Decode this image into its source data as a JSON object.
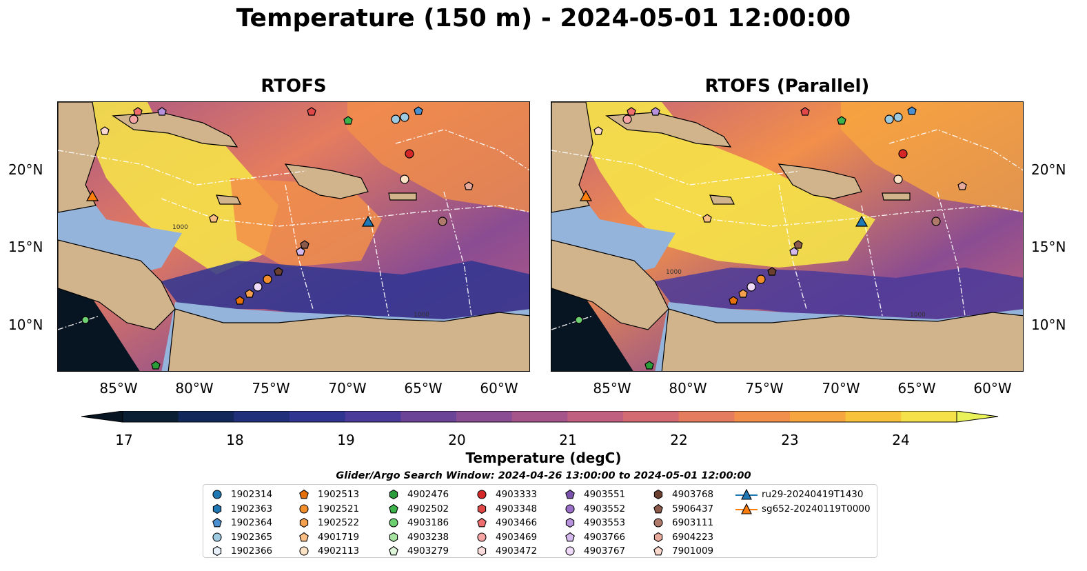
{
  "title": "Temperature (150 m) - 2024-05-01 12:00:00",
  "panels": [
    {
      "title": "RTOFS"
    },
    {
      "title": "RTOFS (Parallel)"
    }
  ],
  "lon_ticks": [
    "85°W",
    "80°W",
    "75°W",
    "70°W",
    "65°W",
    "60°W"
  ],
  "lat_ticks": [
    "20°N",
    "15°N",
    "10°N"
  ],
  "contour_labels": [
    "1000",
    "1000",
    "1000",
    "1000"
  ],
  "colorbar": {
    "label": "Temperature (degC)",
    "ticks": [
      "17",
      "18",
      "19",
      "20",
      "21",
      "22",
      "23",
      "24"
    ],
    "colors": [
      "#0a1f33",
      "#12275a",
      "#21307a",
      "#2f3590",
      "#4a3a9a",
      "#6b4498",
      "#8a4c92",
      "#a5558a",
      "#c05f80",
      "#d46b72",
      "#e57c5e",
      "#f28f4a",
      "#f7a63f",
      "#f8c23a",
      "#f5e24a"
    ],
    "extend_min_color": "#071421",
    "extend_max_color": "#eaf25a"
  },
  "search_window": "Glider/Argo Search Window: 2024-04-26 13:00:00 to 2024-05-01 12:00:00",
  "land_color": "#d2b48c",
  "shelf_color": "#94b4dc",
  "legend": [
    {
      "label": "1902314",
      "marker": "circle",
      "color": "#1f77b4"
    },
    {
      "label": "1902363",
      "marker": "hexagon",
      "color": "#1f77b4"
    },
    {
      "label": "1902364",
      "marker": "pentagon",
      "color": "#4a90d0"
    },
    {
      "label": "1902365",
      "marker": "circle",
      "color": "#9ecae1"
    },
    {
      "label": "1902366",
      "marker": "hexagon",
      "color": "#e8f1fb"
    },
    {
      "label": "1902513",
      "marker": "pentagon",
      "color": "#e6700a"
    },
    {
      "label": "1902521",
      "marker": "circle",
      "color": "#f28e2b"
    },
    {
      "label": "1902522",
      "marker": "hexagon",
      "color": "#f5a04f"
    },
    {
      "label": "4901719",
      "marker": "pentagon",
      "color": "#fbbf85"
    },
    {
      "label": "4902113",
      "marker": "circle",
      "color": "#fde3c6"
    },
    {
      "label": "4902476",
      "marker": "hexagon",
      "color": "#2a9d3a"
    },
    {
      "label": "4902502",
      "marker": "pentagon",
      "color": "#3cb44b"
    },
    {
      "label": "4903186",
      "marker": "circle",
      "color": "#6ccf70"
    },
    {
      "label": "4903238",
      "marker": "hexagon",
      "color": "#a6e3a1"
    },
    {
      "label": "4903279",
      "marker": "pentagon",
      "color": "#dff5da"
    },
    {
      "label": "4903333",
      "marker": "circle",
      "color": "#d62728"
    },
    {
      "label": "4903348",
      "marker": "hexagon",
      "color": "#e04848"
    },
    {
      "label": "4903466",
      "marker": "pentagon",
      "color": "#ee6e6e"
    },
    {
      "label": "4903469",
      "marker": "circle",
      "color": "#f5a3a3"
    },
    {
      "label": "4903472",
      "marker": "hexagon",
      "color": "#fcdcdc"
    },
    {
      "label": "4903551",
      "marker": "pentagon",
      "color": "#7b52ae"
    },
    {
      "label": "4903552",
      "marker": "circle",
      "color": "#9a6fc8"
    },
    {
      "label": "4903553",
      "marker": "hexagon",
      "color": "#b792dc"
    },
    {
      "label": "4903766",
      "marker": "pentagon",
      "color": "#d4b8ee"
    },
    {
      "label": "4903767",
      "marker": "circle",
      "color": "#efdaf9"
    },
    {
      "label": "4903768",
      "marker": "hexagon",
      "color": "#6b4030"
    },
    {
      "label": "5906437",
      "marker": "pentagon",
      "color": "#8c5a4a"
    },
    {
      "label": "6903111",
      "marker": "circle",
      "color": "#b07a6a"
    },
    {
      "label": "6904223",
      "marker": "hexagon",
      "color": "#e6a99a"
    },
    {
      "label": "7901009",
      "marker": "pentagon",
      "color": "#fbd9cf"
    },
    {
      "label": "ru29-20240419T1430",
      "marker": "triangle-line",
      "color": "#1f77b4"
    },
    {
      "label": "sg652-20240119T0000",
      "marker": "triangle-line",
      "color": "#ff7f0e"
    }
  ]
}
